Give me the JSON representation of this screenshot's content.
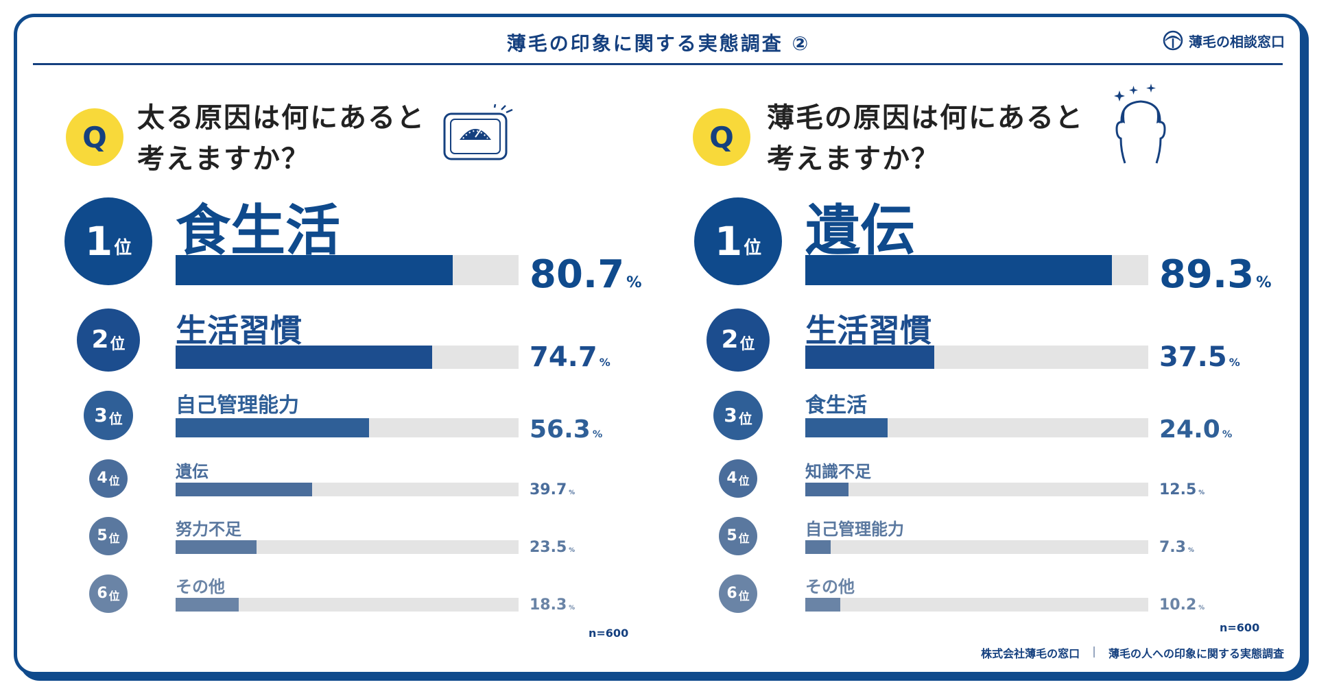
{
  "header": {
    "title": "薄毛の印象に関する実態調査 ②",
    "brand": "薄毛の相談窓口"
  },
  "colors": {
    "rank1": "#0f4a8c",
    "rank2": "#1c4d8e",
    "rank3": "#2f5f97",
    "rank4": "#4a6d9b",
    "rank5": "#5a789f",
    "rank6": "#6a84a6",
    "accent_yellow": "#f8d93a",
    "track": "#e4e4e4"
  },
  "chart_data": [
    {
      "type": "bar",
      "title": "太る原因は何にあると考えますか？",
      "title_lines": [
        "太る原因は何にあると",
        "考えますか？"
      ],
      "badge": "Q",
      "rank_suffix": "位",
      "categories": [
        "食生活",
        "生活習慣",
        "自己管理能力",
        "遺伝",
        "努力不足",
        "その他"
      ],
      "ranks": [
        "1",
        "2",
        "3",
        "4",
        "5",
        "6"
      ],
      "values": [
        80.7,
        74.7,
        56.3,
        39.7,
        23.5,
        18.3
      ],
      "value_labels": [
        "80.7",
        "74.7",
        "56.3",
        "39.7",
        "23.5",
        "18.3"
      ],
      "unit": "%",
      "xlim": [
        0,
        100
      ],
      "n": "n=600",
      "icon": "scale-icon"
    },
    {
      "type": "bar",
      "title": "薄毛の原因は何にあると考えますか？",
      "title_lines": [
        "薄毛の原因は何にあると",
        "考えますか？"
      ],
      "badge": "Q",
      "rank_suffix": "位",
      "categories": [
        "遺伝",
        "生活習慣",
        "食生活",
        "知識不足",
        "自己管理能力",
        "その他"
      ],
      "ranks": [
        "1",
        "2",
        "3",
        "4",
        "5",
        "6"
      ],
      "values": [
        89.3,
        37.5,
        24.0,
        12.5,
        7.3,
        10.2
      ],
      "value_labels": [
        "89.3",
        "37.5",
        "24.0",
        "12.5",
        "7.3",
        "10.2"
      ],
      "unit": "%",
      "xlim": [
        0,
        100
      ],
      "n": "n=600",
      "icon": "bald-head-icon"
    }
  ],
  "footer": {
    "company": "株式会社薄毛の窓口",
    "separator": "|",
    "survey": "薄毛の人への印象に関する実態調査"
  }
}
